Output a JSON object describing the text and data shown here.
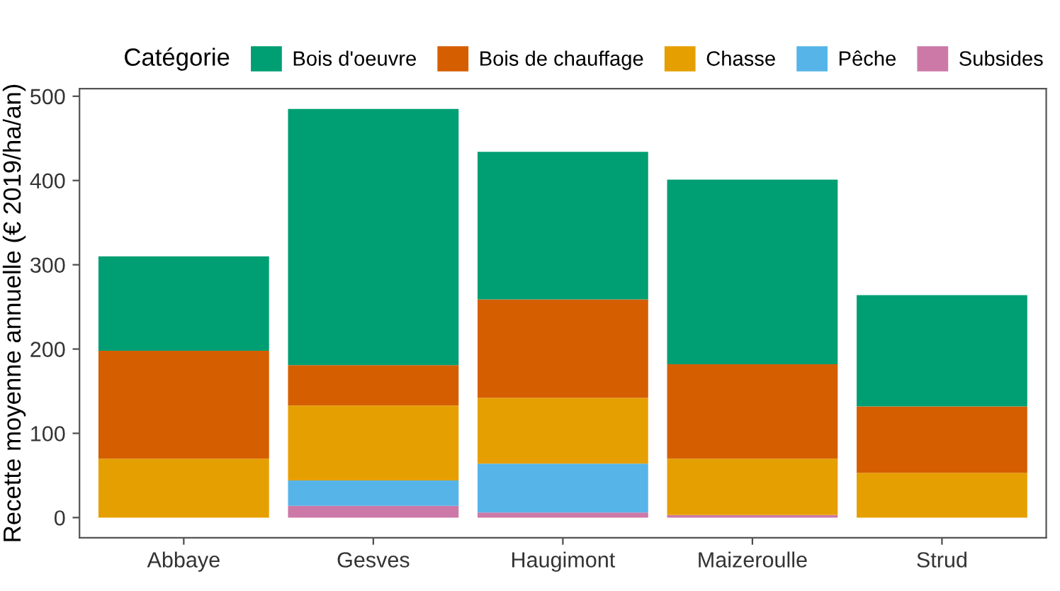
{
  "chart_data": {
    "type": "bar",
    "stacked": true,
    "ylabel": "Recette moyenne annuelle (€ 2019/ha/an)",
    "legend_title": "Catégorie",
    "legend": "top",
    "categories": [
      "Abbaye",
      "Gesves",
      "Haugimont",
      "Maizeroulle",
      "Strud"
    ],
    "series": [
      {
        "name": "Subsides",
        "color": "#cc79a7",
        "values": [
          0,
          14,
          6,
          3,
          0
        ]
      },
      {
        "name": "Pêche",
        "color": "#56b4e9",
        "values": [
          0,
          30,
          58,
          0,
          0
        ]
      },
      {
        "name": "Chasse",
        "color": "#e69f00",
        "values": [
          70,
          89,
          78,
          67,
          53
        ]
      },
      {
        "name": "Bois de chauffage",
        "color": "#d55e00",
        "values": [
          128,
          48,
          117,
          112,
          79
        ]
      },
      {
        "name": "Bois d'oeuvre",
        "color": "#009e73",
        "values": [
          112,
          304,
          175,
          219,
          132
        ]
      }
    ],
    "ylim": [
      -24,
      509
    ],
    "yticks": [
      0,
      100,
      200,
      300,
      400,
      500
    ],
    "grid": false
  }
}
